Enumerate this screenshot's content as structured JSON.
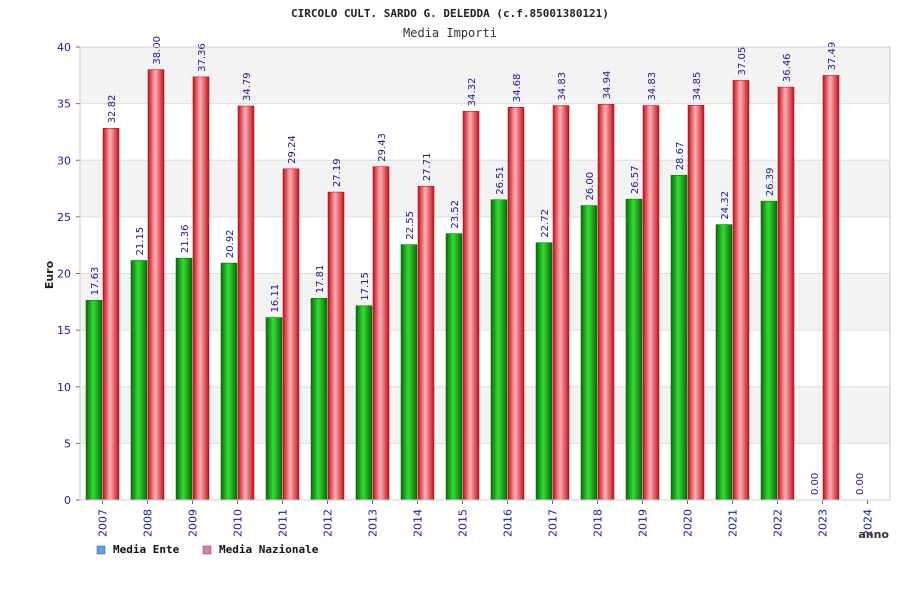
{
  "chart_data": {
    "type": "bar",
    "title": "CIRCOLO CULT. SARDO G. DELEDDA (c.f.85001380121)",
    "subtitle": "Media Importi",
    "xlabel": "anno",
    "ylabel": "Euro",
    "ylim": [
      0,
      40
    ],
    "yticks": [
      0,
      5,
      10,
      15,
      20,
      25,
      30,
      35,
      40
    ],
    "grid": true,
    "legend_position": "bottom-left",
    "categories": [
      "2007",
      "2008",
      "2009",
      "2010",
      "2011",
      "2012",
      "2013",
      "2014",
      "2015",
      "2016",
      "2017",
      "2018",
      "2019",
      "2020",
      "2021",
      "2022",
      "2023",
      "2024"
    ],
    "series": [
      {
        "name": "Media Ente",
        "color": "#1a9a1a",
        "legend_color": "#5aa0f0",
        "values": [
          17.63,
          21.15,
          21.36,
          20.92,
          16.11,
          17.81,
          17.15,
          22.55,
          23.52,
          26.51,
          22.72,
          26.0,
          26.57,
          28.67,
          24.32,
          26.39,
          0.0,
          0.0
        ],
        "labels": [
          "17.63",
          "21.15",
          "21.36",
          "20.92",
          "16.11",
          "17.81",
          "17.15",
          "22.55",
          "23.52",
          "26.51",
          "22.72",
          "26.00",
          "26.57",
          "28.67",
          "24.32",
          "26.39",
          "0.00",
          "0.00"
        ]
      },
      {
        "name": "Media Nazionale",
        "color": "#e02030",
        "legend_color": "#e07ab0",
        "values": [
          32.82,
          38.0,
          37.36,
          34.79,
          29.24,
          27.19,
          29.43,
          27.71,
          34.32,
          34.68,
          34.83,
          34.94,
          34.83,
          34.85,
          37.05,
          36.46,
          37.49,
          null
        ],
        "labels": [
          "32.82",
          "38.00",
          "37.36",
          "34.79",
          "29.24",
          "27.19",
          "29.43",
          "27.71",
          "34.32",
          "34.68",
          "34.83",
          "34.94",
          "34.83",
          "34.85",
          "37.05",
          "36.46",
          "37.49",
          ""
        ]
      }
    ]
  }
}
